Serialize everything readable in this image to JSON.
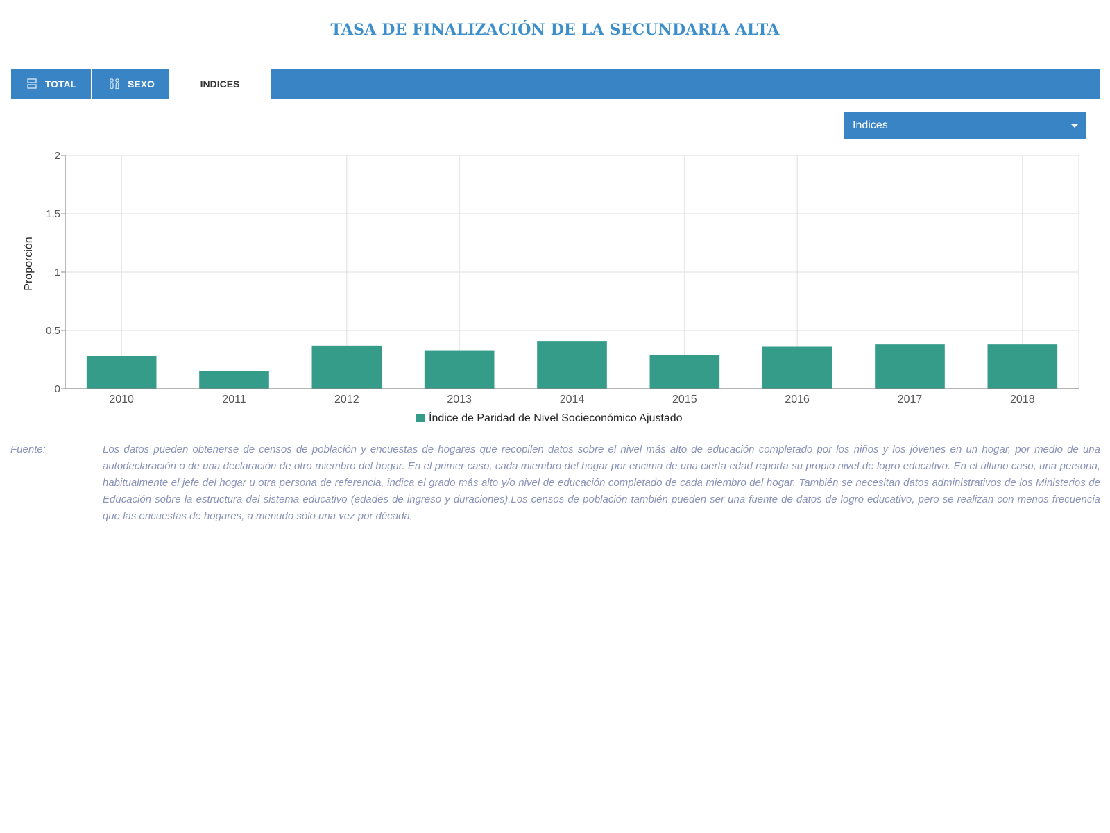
{
  "title": "TASA DE FINALIZACIÓN DE LA SECUNDARIA ALTA",
  "tabs": [
    {
      "label": "TOTAL",
      "icon": "rows-icon"
    },
    {
      "label": "SEXO",
      "icon": "gender-icon"
    },
    {
      "label": "INDICES",
      "icon": ""
    }
  ],
  "dropdown": {
    "selected": "Indices"
  },
  "colors": {
    "accent": "#3884c4",
    "bar": "#369c8a",
    "title": "#3d8fcc",
    "source": "#8a93b8"
  },
  "chart_data": {
    "type": "bar",
    "categories": [
      "2010",
      "2011",
      "2012",
      "2013",
      "2014",
      "2015",
      "2016",
      "2017",
      "2018"
    ],
    "series": [
      {
        "name": "Índice de Paridad de Nivel Socieconómico Ajustado",
        "values": [
          0.28,
          0.15,
          0.37,
          0.33,
          0.41,
          0.29,
          0.36,
          0.38,
          0.38
        ]
      }
    ],
    "ylabel": "Proporción",
    "ylim": [
      0,
      2
    ],
    "yticks": [
      0,
      0.5,
      1,
      1.5,
      2
    ],
    "grid": true,
    "legend": "bottom-center"
  },
  "source": {
    "label": "Fuente:",
    "text": "Los datos pueden obtenerse de censos de población y encuestas de hogares que recopilen datos sobre el nivel más alto de educación completado por los niños y los jóvenes en un hogar, por medio de una autodeclaración o de una declaración de otro miembro del hogar. En el primer caso, cada miembro del hogar por encima de una cierta edad reporta su propio nivel de logro educativo. En el último caso, una persona, habitualmente el jefe del hogar u otra persona de referencia, indica el grado más alto y/o nivel de educación completado de cada miembro del hogar. También se necesitan datos administrativos de los Ministerios de Educación sobre la estructura del sistema educativo (edades de ingreso y duraciones).Los censos de población también pueden ser una fuente de datos de logro educativo, pero se realizan con menos frecuencia que las encuestas de hogares, a menudo sólo una vez por década."
  }
}
